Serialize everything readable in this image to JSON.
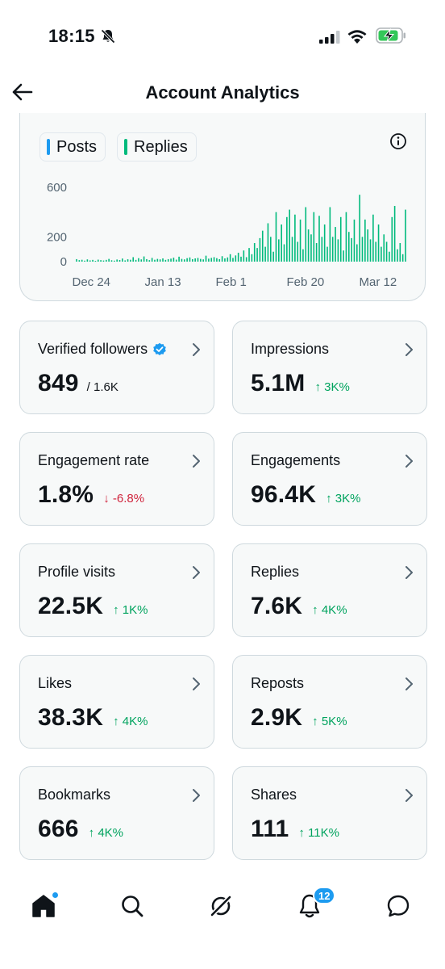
{
  "status_bar": {
    "time": "18:15",
    "icons": [
      "bell-slash-icon",
      "signal-icon",
      "wifi-icon",
      "battery-charging-icon"
    ]
  },
  "header": {
    "title": "Account Analytics",
    "back_icon": "arrow-left-icon"
  },
  "chart": {
    "legend": [
      {
        "label": "Posts",
        "color": "#1d9bf0"
      },
      {
        "label": "Replies",
        "color": "#00ba7c"
      }
    ],
    "info_icon": "info-icon"
  },
  "chart_data": {
    "type": "bar",
    "x_ticks": [
      "Dec 24",
      "Jan 13",
      "Feb 1",
      "Feb 20",
      "Mar 12"
    ],
    "y_ticks": [
      "600",
      "200",
      "0"
    ],
    "ylim": [
      0,
      600
    ],
    "series": [
      {
        "name": "Posts",
        "color": "#1d9bf0"
      },
      {
        "name": "Replies",
        "color": "#00ba7c",
        "values": [
          20,
          12,
          15,
          8,
          18,
          10,
          14,
          6,
          16,
          12,
          9,
          14,
          22,
          11,
          8,
          17,
          13,
          25,
          10,
          19,
          15,
          36,
          14,
          28,
          18,
          42,
          20,
          12,
          30,
          15,
          22,
          18,
          26,
          14,
          20,
          24,
          32,
          16,
          40,
          22,
          18,
          28,
          34,
          20,
          26,
          30,
          22,
          18,
          48,
          24,
          30,
          36,
          28,
          20,
          44,
          26,
          34,
          60,
          30,
          50,
          72,
          40,
          90,
          36,
          110,
          60,
          150,
          110,
          190,
          250,
          120,
          310,
          200,
          80,
          400,
          180,
          300,
          140,
          360,
          420,
          200,
          380,
          160,
          340,
          100,
          440,
          260,
          220,
          400,
          150,
          370,
          200,
          300,
          120,
          440,
          200,
          280,
          180,
          360,
          90,
          400,
          240,
          190,
          340,
          140,
          540,
          200,
          340,
          260,
          180,
          380,
          160,
          300,
          120,
          220,
          160,
          80,
          360,
          450,
          100,
          150,
          60,
          420
        ]
      }
    ]
  },
  "stats": [
    {
      "label": "Verified followers",
      "value": "849",
      "sub": "/ 1.6K",
      "change": "",
      "direction": "none",
      "verified": true
    },
    {
      "label": "Impressions",
      "value": "5.1M",
      "sub": "",
      "change": "3K%",
      "direction": "up"
    },
    {
      "label": "Engagement rate",
      "value": "1.8%",
      "sub": "",
      "change": "-6.8%",
      "direction": "down"
    },
    {
      "label": "Engagements",
      "value": "96.4K",
      "sub": "",
      "change": "3K%",
      "direction": "up"
    },
    {
      "label": "Profile visits",
      "value": "22.5K",
      "sub": "",
      "change": "1K%",
      "direction": "up"
    },
    {
      "label": "Replies",
      "value": "7.6K",
      "sub": "",
      "change": "4K%",
      "direction": "up"
    },
    {
      "label": "Likes",
      "value": "38.3K",
      "sub": "",
      "change": "4K%",
      "direction": "up"
    },
    {
      "label": "Reposts",
      "value": "2.9K",
      "sub": "",
      "change": "5K%",
      "direction": "up"
    },
    {
      "label": "Bookmarks",
      "value": "666",
      "sub": "",
      "change": "4K%",
      "direction": "up"
    },
    {
      "label": "Shares",
      "value": "111",
      "sub": "",
      "change": "11K%",
      "direction": "up"
    }
  ],
  "bottom_nav": {
    "items": [
      "home-icon",
      "search-icon",
      "grok-icon",
      "notifications-icon",
      "messages-icon"
    ],
    "notification_count": "12",
    "accent": "#1d9bf0"
  }
}
